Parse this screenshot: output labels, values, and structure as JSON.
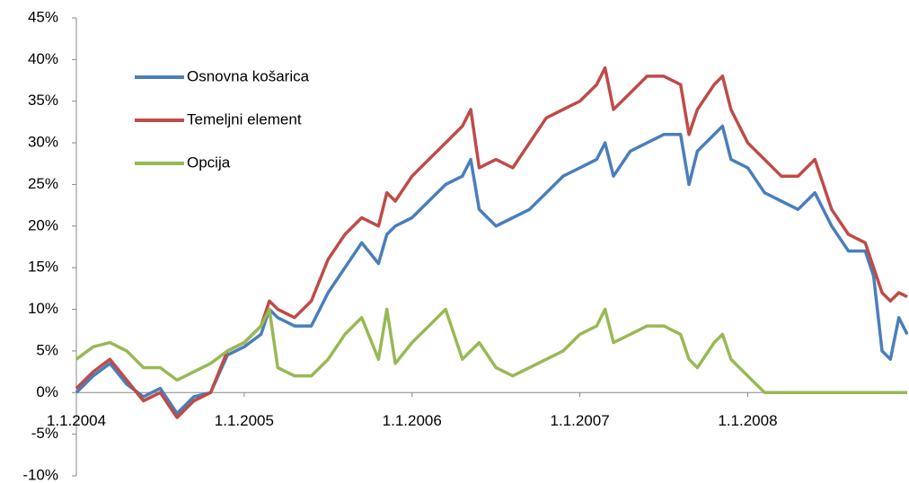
{
  "chart_data": {
    "type": "line",
    "x": [
      2004.0,
      2004.1,
      2004.2,
      2004.3,
      2004.4,
      2004.5,
      2004.6,
      2004.7,
      2004.8,
      2004.9,
      2005.0,
      2005.1,
      2005.15,
      2005.2,
      2005.3,
      2005.4,
      2005.5,
      2005.6,
      2005.7,
      2005.8,
      2005.85,
      2005.9,
      2006.0,
      2006.1,
      2006.2,
      2006.3,
      2006.35,
      2006.4,
      2006.5,
      2006.6,
      2006.7,
      2006.8,
      2006.9,
      2007.0,
      2007.1,
      2007.15,
      2007.2,
      2007.3,
      2007.4,
      2007.5,
      2007.6,
      2007.65,
      2007.7,
      2007.8,
      2007.85,
      2007.9,
      2008.0,
      2008.1,
      2008.2,
      2008.3,
      2008.4,
      2008.5,
      2008.6,
      2008.7,
      2008.75,
      2008.8,
      2008.85,
      2008.9,
      2008.95
    ],
    "series": [
      {
        "name": "Osnovna košarica",
        "color": "#4a7ebb",
        "values": [
          0,
          2,
          3.5,
          1,
          -0.5,
          0.5,
          -2.5,
          -0.5,
          0,
          4.5,
          5.5,
          7,
          10,
          9,
          8,
          8,
          12,
          15,
          18,
          15.5,
          19,
          20,
          21,
          23,
          25,
          26,
          28,
          22,
          20,
          21,
          22,
          24,
          26,
          27,
          28,
          30,
          26,
          29,
          30,
          31,
          31,
          25,
          29,
          31,
          32,
          28,
          27,
          24,
          23,
          22,
          24,
          20,
          17,
          17,
          14,
          5,
          4,
          9,
          7
        ]
      },
      {
        "name": "Temeljni element",
        "color": "#be4b48",
        "values": [
          0.5,
          2.5,
          4,
          1.5,
          -1,
          0,
          -3,
          -1,
          0,
          5,
          6,
          8,
          11,
          10,
          9,
          11,
          16,
          19,
          21,
          20,
          24,
          23,
          26,
          28,
          30,
          32,
          34,
          27,
          28,
          27,
          30,
          33,
          34,
          35,
          37,
          39,
          34,
          36,
          38,
          38,
          37,
          31,
          34,
          37,
          38,
          34,
          30,
          28,
          26,
          26,
          28,
          22,
          19,
          18,
          15,
          12,
          11,
          12,
          11.5
        ]
      },
      {
        "name": "Opcija",
        "color": "#98b954",
        "values": [
          4,
          5.5,
          6,
          5,
          3,
          3,
          1.5,
          2.5,
          3.5,
          5,
          6,
          8,
          10,
          3,
          2,
          2,
          4,
          7,
          9,
          4,
          10,
          3.5,
          6,
          8,
          10,
          4,
          5,
          6,
          3,
          2,
          3,
          4,
          5,
          7,
          8,
          10,
          6,
          7,
          8,
          8,
          7,
          4,
          3,
          6,
          7,
          4,
          2,
          0,
          0,
          0,
          0,
          0,
          0,
          0,
          0,
          0,
          0,
          0,
          0
        ]
      }
    ],
    "xlim": [
      2004,
      2008.95
    ],
    "xticks": [
      {
        "value": 2004,
        "label": "1.1.2004"
      },
      {
        "value": 2005,
        "label": "1.1.2005"
      },
      {
        "value": 2006,
        "label": "1.1.2006"
      },
      {
        "value": 2007,
        "label": "1.1.2007"
      },
      {
        "value": 2008,
        "label": "1.1.2008"
      }
    ],
    "ylim": [
      -10,
      45
    ],
    "yticks": [
      {
        "value": -10,
        "label": "-10%"
      },
      {
        "value": -5,
        "label": "-5%"
      },
      {
        "value": 0,
        "label": "0%"
      },
      {
        "value": 5,
        "label": "5%"
      },
      {
        "value": 10,
        "label": "10%"
      },
      {
        "value": 15,
        "label": "15%"
      },
      {
        "value": 20,
        "label": "20%"
      },
      {
        "value": 25,
        "label": "25%"
      },
      {
        "value": 30,
        "label": "30%"
      },
      {
        "value": 35,
        "label": "35%"
      },
      {
        "value": 40,
        "label": "40%"
      },
      {
        "value": 45,
        "label": "45%"
      }
    ],
    "legend": "upper left"
  }
}
